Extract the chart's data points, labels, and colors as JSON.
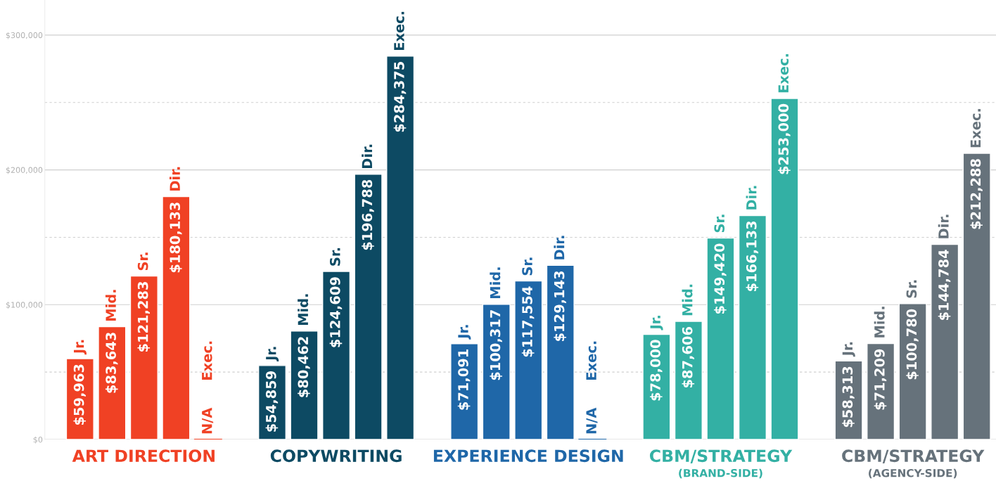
{
  "chart_data": {
    "type": "bar",
    "categories": [
      "Jr.",
      "Mid.",
      "Sr.",
      "Dir.",
      "Exec.",
      null,
      "Jr.",
      "Mid.",
      "Sr.",
      "Dir.",
      "Exec.",
      null,
      "Jr.",
      "Mid.",
      "Sr.",
      "Dir.",
      "Exec.",
      null,
      "Jr.",
      "Mid.",
      "Sr.",
      "Dir.",
      "Exec.",
      null,
      "Jr.",
      "Mid.",
      "Sr.",
      "Dir.",
      "Exec."
    ],
    "series": [
      {
        "name": "ART DIRECTION",
        "color": "#f04124",
        "values": [
          59963,
          83643,
          121283,
          180133,
          null,
          null,
          null,
          null,
          null,
          null,
          null,
          null,
          null,
          null,
          null,
          null,
          null,
          null,
          null,
          null,
          null,
          null,
          null,
          null,
          null,
          null,
          null,
          null,
          null
        ],
        "value_labels": [
          "$59,963",
          "$83,643",
          "$121,283",
          "$180,133",
          "N/A",
          null,
          null,
          null,
          null,
          null,
          null,
          null,
          null,
          null,
          null,
          null,
          null,
          null,
          null,
          null,
          null,
          null,
          null,
          null,
          null,
          null,
          null,
          null,
          null
        ]
      },
      {
        "name": "COPYWRITING",
        "color": "#0d4a63",
        "values": [
          null,
          null,
          null,
          null,
          null,
          null,
          54859,
          80462,
          124609,
          196788,
          284375,
          null,
          null,
          null,
          null,
          null,
          null,
          null,
          null,
          null,
          null,
          null,
          null,
          null,
          null,
          null,
          null,
          null,
          null
        ],
        "value_labels": [
          null,
          null,
          null,
          null,
          null,
          null,
          "$54,859",
          "$80,462",
          "$124,609",
          "$196,788",
          "$284,375",
          null,
          null,
          null,
          null,
          null,
          null,
          null,
          null,
          null,
          null,
          null,
          null,
          null,
          null,
          null,
          null,
          null,
          null
        ]
      },
      {
        "name": "EXPERIENCE DESIGN",
        "color": "#1f67a8",
        "values": [
          null,
          null,
          null,
          null,
          null,
          null,
          null,
          null,
          null,
          null,
          null,
          null,
          71091,
          100317,
          117554,
          129143,
          null,
          null,
          null,
          null,
          null,
          null,
          null,
          null,
          null,
          null,
          null,
          null,
          null
        ],
        "value_labels": [
          null,
          null,
          null,
          null,
          null,
          null,
          null,
          null,
          null,
          null,
          null,
          null,
          "$71,091",
          "$100,317",
          "$117,554",
          "$129,143",
          "N/A",
          null,
          null,
          null,
          null,
          null,
          null,
          null,
          null,
          null,
          null,
          null,
          null
        ]
      },
      {
        "name": "CBM/STRATEGY\n(BRAND-SIDE)",
        "color": "#33b0a4",
        "values": [
          null,
          null,
          null,
          null,
          null,
          null,
          null,
          null,
          null,
          null,
          null,
          null,
          null,
          null,
          null,
          null,
          null,
          null,
          78000,
          87606,
          149420,
          166133,
          253000,
          null,
          null,
          null,
          null,
          null,
          null
        ],
        "value_labels": [
          null,
          null,
          null,
          null,
          null,
          null,
          null,
          null,
          null,
          null,
          null,
          null,
          null,
          null,
          null,
          null,
          null,
          null,
          "$78,000",
          "$87,606",
          "$149,420",
          "$166,133",
          "$253,000",
          null,
          null,
          null,
          null,
          null,
          null
        ]
      },
      {
        "name": "CBM/STRATEGY\n(AGENCY-SIDE)",
        "color": "#66727b",
        "values": [
          null,
          null,
          null,
          null,
          null,
          null,
          null,
          null,
          null,
          null,
          null,
          null,
          null,
          null,
          null,
          null,
          null,
          null,
          null,
          null,
          null,
          null,
          null,
          null,
          58313,
          71209,
          100780,
          144784,
          212288
        ],
        "value_labels": [
          null,
          null,
          null,
          null,
          null,
          null,
          null,
          null,
          null,
          null,
          null,
          null,
          null,
          null,
          null,
          null,
          null,
          null,
          null,
          null,
          null,
          null,
          null,
          null,
          "$58,313",
          "$71,209",
          "$100,780",
          "$144,784",
          "$212,288"
        ]
      }
    ],
    "ylim": [
      0,
      326000
    ],
    "yticks": [
      {
        "value": 0,
        "label": "$0"
      },
      {
        "value": 50000,
        "label": null
      },
      {
        "value": 100000,
        "label": "$100,000"
      },
      {
        "value": 150000,
        "label": null
      },
      {
        "value": 200000,
        "label": "$200,000"
      },
      {
        "value": 250000,
        "label": null
      },
      {
        "value": 300000,
        "label": "$300,000"
      }
    ],
    "grid": "y",
    "legend": "bottom"
  }
}
